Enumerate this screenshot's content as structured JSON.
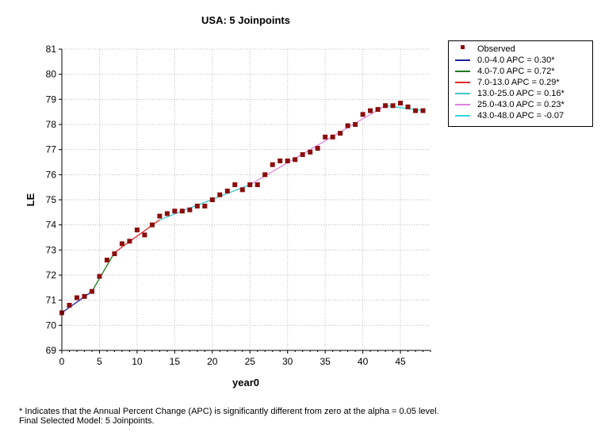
{
  "chart_data": {
    "type": "line",
    "title": "USA: 5 Joinpoints",
    "xlabel": "year0",
    "ylabel": "LE",
    "xlim": [
      0,
      49
    ],
    "ylim": [
      69,
      81
    ],
    "xticks": [
      0,
      5,
      10,
      15,
      20,
      25,
      30,
      35,
      40,
      45
    ],
    "yticks": [
      69,
      70,
      71,
      72,
      73,
      74,
      75,
      76,
      77,
      78,
      79,
      80,
      81
    ],
    "grid": true,
    "legend_position": "outside-right",
    "observed": {
      "name": "Observed",
      "color": "#8b0d0d",
      "x": [
        0,
        1,
        2,
        3,
        4,
        5,
        6,
        7,
        8,
        9,
        10,
        11,
        12,
        13,
        14,
        15,
        16,
        17,
        18,
        19,
        20,
        21,
        22,
        23,
        24,
        25,
        26,
        27,
        28,
        29,
        30,
        31,
        32,
        33,
        34,
        35,
        36,
        37,
        38,
        39,
        40,
        41,
        42,
        43,
        44,
        45,
        46,
        47,
        48
      ],
      "y": [
        70.5,
        70.8,
        71.1,
        71.15,
        71.35,
        71.95,
        72.6,
        72.85,
        73.25,
        73.35,
        73.8,
        73.6,
        74.0,
        74.35,
        74.45,
        74.55,
        74.55,
        74.6,
        74.75,
        74.75,
        75.0,
        75.2,
        75.35,
        75.6,
        75.4,
        75.6,
        75.6,
        76.0,
        76.4,
        76.55,
        76.55,
        76.6,
        76.8,
        76.9,
        77.05,
        77.5,
        77.5,
        77.65,
        77.95,
        78.0,
        78.4,
        78.55,
        78.6,
        78.75,
        78.75,
        78.85,
        78.7,
        78.55,
        78.55
      ]
    },
    "series": [
      {
        "name": "0.0-4.0 APC  =  0.30*",
        "color": "#1f1fa0",
        "x": [
          0,
          4
        ],
        "y": [
          70.5,
          71.35
        ]
      },
      {
        "name": "4.0-7.0 APC  =  0.72*",
        "color": "#1e7a1e",
        "x": [
          4,
          7
        ],
        "y": [
          71.35,
          72.9
        ]
      },
      {
        "name": "7.0-13.0 APC  =  0.29*",
        "color": "#e02a2a",
        "x": [
          7,
          13
        ],
        "y": [
          72.9,
          74.2
        ]
      },
      {
        "name": "13.0-25.0 APC  =  0.16*",
        "color": "#40c8c8",
        "x": [
          13,
          25
        ],
        "y": [
          74.2,
          75.6
        ]
      },
      {
        "name": "25.0-43.0 APC  =  0.23*",
        "color": "#e080e0",
        "x": [
          25,
          43
        ],
        "y": [
          75.6,
          78.75
        ]
      },
      {
        "name": "43.0-48.0 APC  =  -0.07",
        "color": "#30d8d8",
        "x": [
          43,
          48
        ],
        "y": [
          78.75,
          78.55
        ]
      }
    ]
  },
  "footnote": {
    "line1": "* Indicates that the Annual Percent Change (APC) is significantly different from zero at the alpha = 0.05 level.",
    "line2": "Final Selected Model: 5 Joinpoints."
  }
}
